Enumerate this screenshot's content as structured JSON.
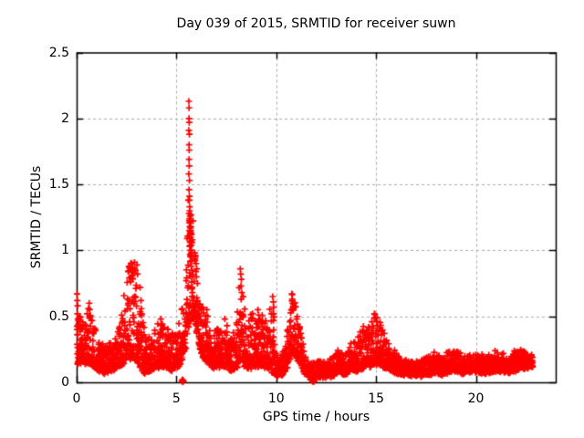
{
  "window": {
    "background": "#ffffff"
  },
  "chart_data": {
    "type": "scatter",
    "title": "Day 039 of 2015, SRMTID for receiver suwn",
    "xlabel": "GPS time / hours",
    "ylabel": "SRMTID / TECUs",
    "series_name": "SRMTID",
    "xlim": [
      0,
      24
    ],
    "ylim": [
      0,
      2.5
    ],
    "xticks": [
      0,
      5,
      10,
      15,
      20
    ],
    "xtick_labels": [
      "0",
      "5",
      "10",
      "15",
      "20"
    ],
    "yticks": [
      0,
      0.5,
      1,
      1.5,
      2,
      2.5
    ],
    "ytick_labels": [
      "0",
      "0.5",
      "1",
      "1.5",
      "2",
      "2.5"
    ],
    "grid": true,
    "grid_color": "#aaaaaa",
    "axis_color": "#000000",
    "marker": {
      "glyph": "plus",
      "color": "#ff0000",
      "size": 7
    },
    "x_data_range": [
      0,
      22.85
    ],
    "peak_value": 2.13,
    "peak_time": 5.63,
    "envelope": {
      "t": [
        0.0,
        0.15,
        0.35,
        0.6,
        0.85,
        1.1,
        1.4,
        1.75,
        2.05,
        2.3,
        2.55,
        2.85,
        3.05,
        3.2,
        3.4,
        3.7,
        3.95,
        4.2,
        4.45,
        4.75,
        5.0,
        5.2,
        5.45,
        5.55,
        5.75,
        5.9,
        6.05,
        6.25,
        6.5,
        6.75,
        7.0,
        7.25,
        7.5,
        7.75,
        8.0,
        8.15,
        8.3,
        8.5,
        8.75,
        9.0,
        9.2,
        9.45,
        9.65,
        9.85,
        10.0,
        10.25,
        10.5,
        10.7,
        10.85,
        11.0,
        11.2,
        11.45,
        11.7,
        12.0,
        12.3,
        12.6,
        12.9,
        13.15,
        13.45,
        13.75,
        14.05,
        14.35,
        14.65,
        14.9,
        15.15,
        15.4,
        15.7,
        16.0,
        16.4,
        16.8,
        17.2,
        17.6,
        18.0,
        18.3,
        18.7,
        19.0,
        19.3,
        19.6,
        19.9,
        20.2,
        20.5,
        20.8,
        21.1,
        21.4,
        21.7,
        22.0,
        22.3,
        22.6,
        22.85
      ],
      "base": [
        0.12,
        0.16,
        0.15,
        0.15,
        0.13,
        0.1,
        0.08,
        0.1,
        0.12,
        0.15,
        0.18,
        0.2,
        0.16,
        0.12,
        0.08,
        0.1,
        0.12,
        0.13,
        0.13,
        0.1,
        0.12,
        0.15,
        0.25,
        0.4,
        0.5,
        0.48,
        0.35,
        0.22,
        0.16,
        0.12,
        0.12,
        0.13,
        0.13,
        0.1,
        0.12,
        0.15,
        0.15,
        0.12,
        0.12,
        0.13,
        0.13,
        0.12,
        0.1,
        0.08,
        0.06,
        0.06,
        0.1,
        0.18,
        0.22,
        0.2,
        0.14,
        0.07,
        0.04,
        0.05,
        0.05,
        0.05,
        0.06,
        0.08,
        0.07,
        0.09,
        0.1,
        0.12,
        0.13,
        0.15,
        0.15,
        0.12,
        0.1,
        0.08,
        0.07,
        0.06,
        0.06,
        0.07,
        0.08,
        0.07,
        0.09,
        0.1,
        0.08,
        0.09,
        0.1,
        0.08,
        0.08,
        0.09,
        0.1,
        0.09,
        0.08,
        0.1,
        0.12,
        0.12,
        0.13
      ],
      "amp": [
        0.55,
        0.4,
        0.25,
        0.45,
        0.3,
        0.22,
        0.18,
        0.2,
        0.25,
        0.45,
        0.7,
        0.7,
        0.72,
        0.5,
        0.3,
        0.25,
        0.3,
        0.35,
        0.3,
        0.25,
        0.3,
        0.38,
        0.35,
        1.0,
        0.9,
        0.62,
        0.45,
        0.38,
        0.4,
        0.25,
        0.28,
        0.35,
        0.3,
        0.25,
        0.3,
        0.7,
        0.55,
        0.3,
        0.4,
        0.42,
        0.4,
        0.35,
        0.45,
        0.57,
        0.15,
        0.12,
        0.22,
        0.4,
        0.47,
        0.42,
        0.28,
        0.12,
        0.08,
        0.1,
        0.1,
        0.1,
        0.14,
        0.18,
        0.15,
        0.2,
        0.25,
        0.3,
        0.3,
        0.37,
        0.33,
        0.25,
        0.2,
        0.15,
        0.11,
        0.1,
        0.1,
        0.12,
        0.14,
        0.12,
        0.16,
        0.15,
        0.13,
        0.13,
        0.13,
        0.12,
        0.12,
        0.13,
        0.13,
        0.12,
        0.12,
        0.15,
        0.13,
        0.1,
        0.08
      ]
    },
    "feature_points": [
      [
        5.62,
        2.13
      ],
      [
        5.63,
        2.08
      ],
      [
        5.63,
        2.0
      ],
      [
        5.64,
        1.97
      ],
      [
        5.62,
        1.91
      ],
      [
        5.65,
        1.88
      ],
      [
        5.63,
        1.8
      ],
      [
        5.64,
        1.76
      ],
      [
        5.63,
        1.69
      ],
      [
        5.64,
        1.64
      ],
      [
        5.62,
        1.58
      ],
      [
        5.65,
        1.53
      ],
      [
        5.63,
        1.46
      ],
      [
        5.65,
        1.41
      ],
      [
        5.64,
        1.38
      ],
      [
        5.66,
        1.33
      ],
      [
        5.63,
        1.28
      ],
      [
        5.66,
        1.24
      ],
      [
        5.64,
        1.21
      ],
      [
        5.67,
        1.18
      ],
      [
        5.65,
        1.15
      ],
      [
        5.68,
        1.12
      ],
      [
        5.66,
        1.09
      ],
      [
        5.69,
        1.06
      ],
      [
        5.67,
        1.03
      ],
      [
        5.7,
        1.0
      ],
      [
        5.68,
        0.97
      ],
      [
        5.71,
        0.95
      ],
      [
        5.66,
        1.3
      ],
      [
        5.68,
        1.26
      ],
      [
        5.7,
        1.22
      ],
      [
        5.72,
        1.18
      ],
      [
        5.69,
        1.14
      ],
      [
        5.71,
        1.1
      ],
      [
        5.73,
        1.07
      ],
      [
        5.7,
        1.17
      ],
      [
        5.72,
        1.13
      ],
      [
        5.74,
        1.04
      ],
      [
        5.75,
        1.0
      ],
      [
        5.73,
        0.96
      ],
      [
        5.76,
        0.92
      ],
      [
        5.74,
        0.88
      ],
      [
        5.77,
        0.85
      ],
      [
        5.78,
        0.8
      ],
      [
        5.76,
        0.76
      ],
      [
        5.79,
        0.72
      ],
      [
        5.8,
        0.68
      ],
      [
        5.82,
        0.62
      ],
      [
        5.84,
        0.57
      ],
      [
        5.86,
        0.52
      ],
      [
        0.02,
        0.67
      ],
      [
        0.03,
        0.62
      ],
      [
        0.05,
        0.58
      ],
      [
        0.04,
        0.52
      ],
      [
        0.06,
        0.48
      ],
      [
        0.08,
        0.44
      ],
      [
        0.02,
        0.4
      ],
      [
        0.05,
        0.36
      ],
      [
        0.63,
        0.6
      ],
      [
        0.65,
        0.55
      ],
      [
        0.67,
        0.5
      ],
      [
        2.58,
        0.84
      ],
      [
        2.62,
        0.88
      ],
      [
        2.68,
        0.86
      ],
      [
        2.72,
        0.9
      ],
      [
        2.77,
        0.84
      ],
      [
        2.8,
        0.87
      ],
      [
        2.85,
        0.83
      ],
      [
        2.9,
        0.91
      ],
      [
        2.95,
        0.85
      ],
      [
        3.02,
        0.89
      ],
      [
        3.05,
        0.82
      ],
      [
        3.18,
        0.72
      ],
      [
        3.22,
        0.62
      ],
      [
        3.26,
        0.52
      ],
      [
        4.22,
        0.48
      ],
      [
        4.28,
        0.44
      ],
      [
        5.95,
        0.95
      ],
      [
        5.98,
        0.9
      ],
      [
        6.02,
        0.86
      ],
      [
        6.0,
        0.8
      ],
      [
        6.05,
        0.75
      ],
      [
        6.52,
        0.55
      ],
      [
        6.56,
        0.5
      ],
      [
        7.42,
        0.48
      ],
      [
        8.2,
        0.86
      ],
      [
        8.22,
        0.82
      ],
      [
        8.25,
        0.78
      ],
      [
        8.23,
        0.73
      ],
      [
        8.27,
        0.68
      ],
      [
        8.24,
        0.63
      ],
      [
        9.08,
        0.55
      ],
      [
        9.12,
        0.51
      ],
      [
        9.82,
        0.65
      ],
      [
        9.85,
        0.61
      ],
      [
        9.87,
        0.57
      ],
      [
        9.84,
        0.52
      ],
      [
        9.86,
        0.47
      ],
      [
        10.78,
        0.67
      ],
      [
        10.8,
        0.63
      ],
      [
        10.82,
        0.6
      ],
      [
        10.79,
        0.55
      ],
      [
        11.02,
        0.48
      ],
      [
        11.06,
        0.44
      ],
      [
        11.1,
        0.4
      ],
      [
        14.92,
        0.52
      ],
      [
        14.97,
        0.49
      ],
      [
        15.02,
        0.46
      ],
      [
        15.07,
        0.43
      ],
      [
        22.55,
        0.21
      ],
      [
        22.62,
        0.19
      ],
      [
        22.7,
        0.18
      ],
      [
        22.76,
        0.16
      ],
      [
        22.82,
        0.15
      ]
    ],
    "zero_points": [
      [
        5.27,
        0.01
      ],
      [
        5.3,
        0.005
      ],
      [
        5.32,
        0.015
      ],
      [
        5.35,
        0.01
      ],
      [
        5.3,
        0.02
      ],
      [
        5.33,
        0.005
      ],
      [
        11.8,
        0.01
      ],
      [
        11.84,
        0.005
      ],
      [
        11.87,
        0.015
      ],
      [
        11.9,
        0.01
      ],
      [
        11.84,
        0.02
      ],
      [
        11.88,
        0.005
      ]
    ],
    "generation": {
      "x_start": 0.02,
      "x_end": 22.85,
      "sample_step": 0.0133,
      "points_per_step": 2,
      "shape_exponent": 2.2,
      "jitter": 0.04,
      "seed": 42
    }
  }
}
